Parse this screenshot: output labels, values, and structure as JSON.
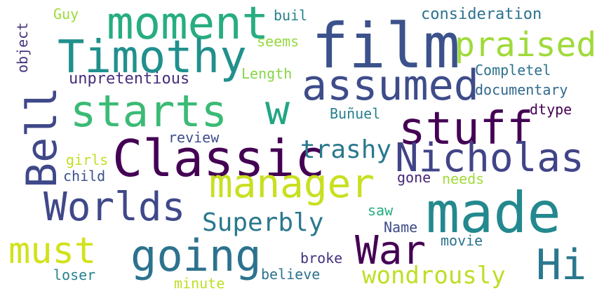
{
  "palette": {
    "background": "#ffffff"
  },
  "words": [
    {
      "text": "film",
      "color": "#3b528b"
    },
    {
      "text": "moment",
      "color": "#27ad81"
    },
    {
      "text": "Timothy",
      "color": "#21908d"
    },
    {
      "text": "praised",
      "color": "#9fda3a"
    },
    {
      "text": "assumed",
      "color": "#3e4c8a"
    },
    {
      "text": "starts",
      "color": "#3bbb75"
    },
    {
      "text": "w",
      "color": "#21a685"
    },
    {
      "text": "stuff",
      "color": "#440154"
    },
    {
      "text": "Bell",
      "color": "#3f4889"
    },
    {
      "text": "Classic",
      "color": "#440154"
    },
    {
      "text": "Nicholas",
      "color": "#414487"
    },
    {
      "text": "trashy",
      "color": "#2a788e"
    },
    {
      "text": "manager",
      "color": "#c8e020"
    },
    {
      "text": "Worlds",
      "color": "#3f4889"
    },
    {
      "text": "made",
      "color": "#23898e"
    },
    {
      "text": "must",
      "color": "#d2e21b"
    },
    {
      "text": "going",
      "color": "#2c728e"
    },
    {
      "text": "War",
      "color": "#440154"
    },
    {
      "text": "Hi",
      "color": "#2a788e"
    },
    {
      "text": "Superbly",
      "color": "#2a788e"
    },
    {
      "text": "wondrously",
      "color": "#bddf26"
    },
    {
      "text": "Guy",
      "color": "#9fda3a"
    },
    {
      "text": "object",
      "color": "#46327e"
    },
    {
      "text": "buil",
      "color": "#26828e"
    },
    {
      "text": "seems",
      "color": "#95d840"
    },
    {
      "text": "consideration",
      "color": "#2c728e"
    },
    {
      "text": "Length",
      "color": "#86d549"
    },
    {
      "text": "unpretentious",
      "color": "#472d7b"
    },
    {
      "text": "Completel",
      "color": "#2c728e"
    },
    {
      "text": "documentary",
      "color": "#31688e"
    },
    {
      "text": "Buñuel",
      "color": "#277f8e"
    },
    {
      "text": "dtype",
      "color": "#440154"
    },
    {
      "text": "review",
      "color": "#3e4c8a"
    },
    {
      "text": "girls",
      "color": "#c0df25"
    },
    {
      "text": "child",
      "color": "#3b528b"
    },
    {
      "text": "gone",
      "color": "#482475"
    },
    {
      "text": "needs",
      "color": "#a0da39"
    },
    {
      "text": "saw",
      "color": "#27ad81"
    },
    {
      "text": "Name",
      "color": "#3e4a89"
    },
    {
      "text": "movie",
      "color": "#2c728e"
    },
    {
      "text": "broke",
      "color": "#46327e"
    },
    {
      "text": "loser",
      "color": "#26828e"
    },
    {
      "text": "believe",
      "color": "#2c728e"
    },
    {
      "text": "minute",
      "color": "#bddf26"
    }
  ]
}
